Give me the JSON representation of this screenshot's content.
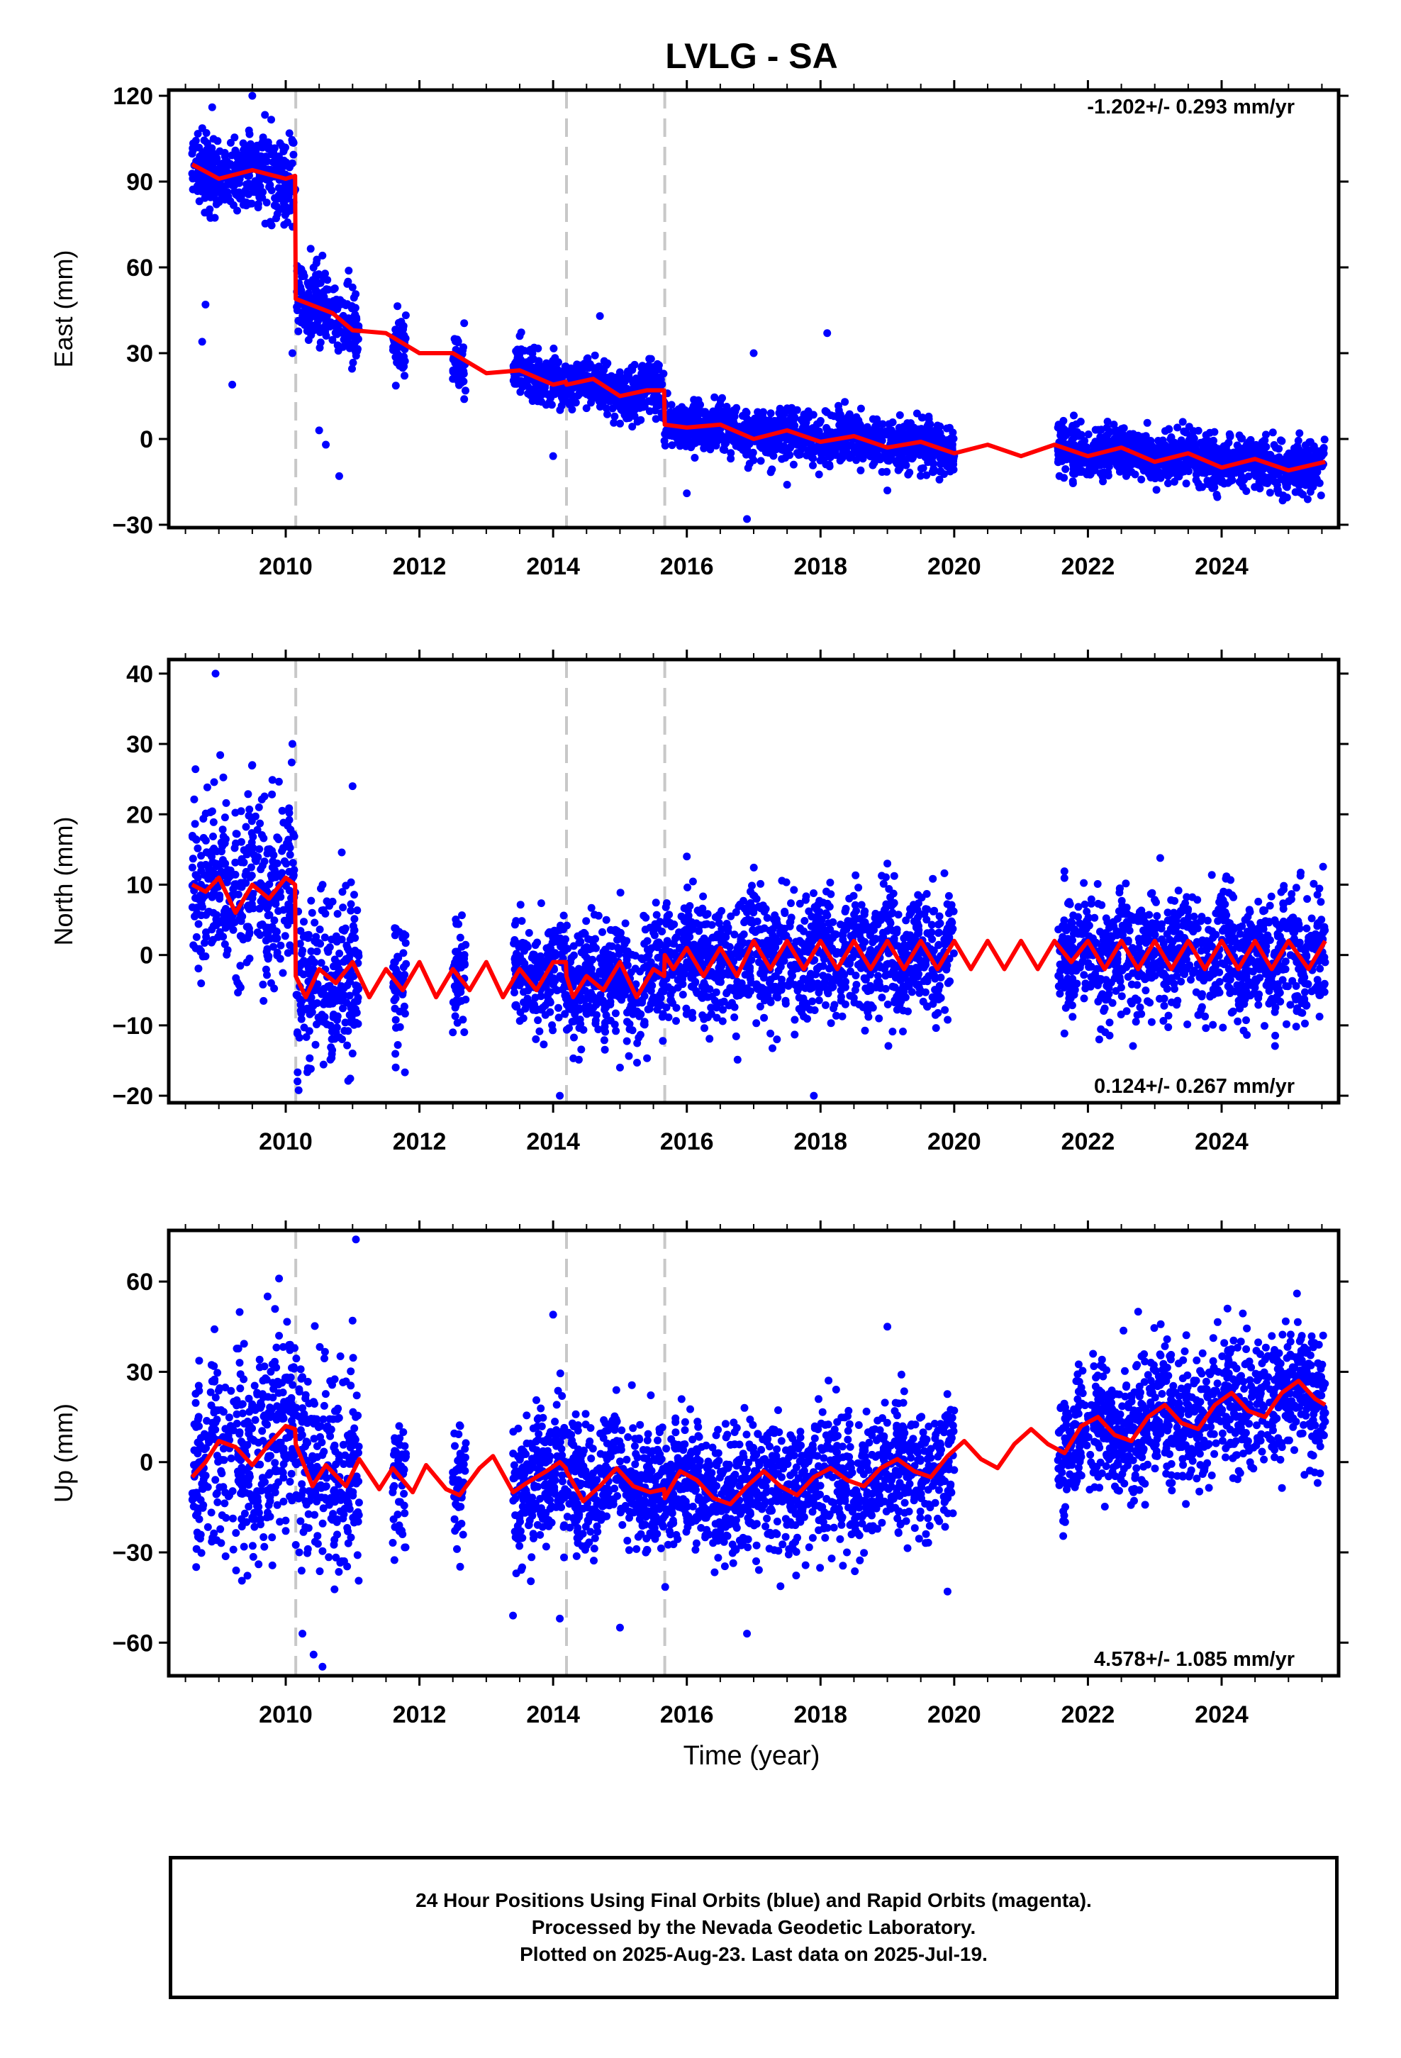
{
  "title": "LVLG - SA",
  "xlabel": "Time (year)",
  "footer": {
    "line1": "24 Hour Positions Using Final Orbits (blue) and Rapid Orbits (magenta).",
    "line2": "Processed by the Nevada Geodetic Laboratory.",
    "line3": "Plotted on 2025-Aug-23. Last data on 2025-Jul-19."
  },
  "colors": {
    "points": "#0000ff",
    "model": "#ff0000",
    "offset_lines": "#c8c8c8"
  },
  "chart_data": [
    {
      "type": "scatter",
      "name": "east",
      "ylabel": "East (mm)",
      "rate_text": "-1.202+/- 0.293 mm/yr",
      "rate_position": "top-right",
      "xlim": [
        2008.25,
        2025.75
      ],
      "ylim": [
        -31,
        122
      ],
      "yticks": [
        -30,
        0,
        30,
        60,
        90,
        120
      ],
      "xticks": [
        2010,
        2012,
        2014,
        2016,
        2018,
        2020,
        2022,
        2024
      ],
      "offset_epochs": [
        2010.15,
        2014.2,
        2015.67
      ],
      "data_spans": [
        [
          2008.6,
          2010.15
        ],
        [
          2010.15,
          2011.1
        ],
        [
          2011.6,
          2011.8
        ],
        [
          2012.5,
          2012.7
        ],
        [
          2013.4,
          2020.0
        ],
        [
          2021.55,
          2025.55
        ]
      ],
      "model": [
        [
          2008.6,
          96
        ],
        [
          2009.0,
          91
        ],
        [
          2009.5,
          94
        ],
        [
          2010.0,
          91
        ],
        [
          2010.14,
          92
        ],
        [
          2010.15,
          49
        ],
        [
          2010.7,
          44
        ],
        [
          2011.0,
          38
        ],
        [
          2011.5,
          37
        ],
        [
          2012.0,
          30
        ],
        [
          2012.5,
          30
        ],
        [
          2013.0,
          23
        ],
        [
          2013.5,
          24
        ],
        [
          2014.0,
          19
        ],
        [
          2014.19,
          20
        ],
        [
          2014.2,
          19
        ],
        [
          2014.6,
          21
        ],
        [
          2015.0,
          15
        ],
        [
          2015.4,
          17
        ],
        [
          2015.66,
          17
        ],
        [
          2015.67,
          5
        ],
        [
          2016.0,
          4
        ],
        [
          2016.5,
          5
        ],
        [
          2017.0,
          0
        ],
        [
          2017.5,
          3
        ],
        [
          2018.0,
          -1
        ],
        [
          2018.5,
          1
        ],
        [
          2019.0,
          -3
        ],
        [
          2019.5,
          -1
        ],
        [
          2020.0,
          -5
        ],
        [
          2020.5,
          -2
        ],
        [
          2021.0,
          -6
        ],
        [
          2021.5,
          -2
        ],
        [
          2022.0,
          -6
        ],
        [
          2022.5,
          -3
        ],
        [
          2023.0,
          -8
        ],
        [
          2023.5,
          -5
        ],
        [
          2024.0,
          -10
        ],
        [
          2024.5,
          -7
        ],
        [
          2025.0,
          -11
        ],
        [
          2025.55,
          -8
        ]
      ],
      "outliers": [
        [
          2008.9,
          116
        ],
        [
          2009.5,
          120
        ],
        [
          2008.8,
          47
        ],
        [
          2008.75,
          34
        ],
        [
          2009.2,
          19
        ],
        [
          2010.1,
          30
        ],
        [
          2010.5,
          3
        ],
        [
          2010.6,
          -2
        ],
        [
          2010.8,
          -13
        ],
        [
          2011.0,
          53
        ],
        [
          2012.5,
          21
        ],
        [
          2013.5,
          36
        ],
        [
          2014.0,
          -6
        ],
        [
          2014.7,
          43
        ],
        [
          2016.7,
          10
        ],
        [
          2016.9,
          -28
        ],
        [
          2017.0,
          30
        ],
        [
          2018.1,
          37
        ],
        [
          2016.0,
          -19
        ],
        [
          2017.5,
          -16
        ],
        [
          2019.0,
          -18
        ]
      ]
    },
    {
      "type": "scatter",
      "name": "north",
      "ylabel": "North (mm)",
      "rate_text": "0.124+/- 0.267 mm/yr",
      "rate_position": "bottom-right",
      "xlim": [
        2008.25,
        2025.75
      ],
      "ylim": [
        -21,
        42
      ],
      "yticks": [
        -20,
        -10,
        0,
        10,
        20,
        30,
        40
      ],
      "xticks": [
        2010,
        2012,
        2014,
        2016,
        2018,
        2020,
        2022,
        2024
      ],
      "offset_epochs": [
        2010.15,
        2014.2,
        2015.67
      ],
      "data_spans": [
        [
          2008.6,
          2010.15
        ],
        [
          2010.15,
          2011.1
        ],
        [
          2011.6,
          2011.8
        ],
        [
          2012.5,
          2012.7
        ],
        [
          2013.4,
          2020.0
        ],
        [
          2021.55,
          2025.55
        ]
      ],
      "model": [
        [
          2008.6,
          10
        ],
        [
          2008.8,
          9
        ],
        [
          2009.0,
          11
        ],
        [
          2009.25,
          6
        ],
        [
          2009.5,
          10
        ],
        [
          2009.75,
          8
        ],
        [
          2010.0,
          11
        ],
        [
          2010.14,
          10
        ],
        [
          2010.15,
          -3
        ],
        [
          2010.3,
          -6
        ],
        [
          2010.5,
          -2
        ],
        [
          2010.75,
          -4
        ],
        [
          2011.0,
          -1
        ],
        [
          2011.25,
          -6
        ],
        [
          2011.5,
          -2
        ],
        [
          2011.75,
          -5
        ],
        [
          2012.0,
          -1
        ],
        [
          2012.25,
          -6
        ],
        [
          2012.5,
          -2
        ],
        [
          2012.75,
          -5
        ],
        [
          2013.0,
          -1
        ],
        [
          2013.25,
          -6
        ],
        [
          2013.5,
          -2
        ],
        [
          2013.75,
          -5
        ],
        [
          2014.0,
          -1
        ],
        [
          2014.19,
          -1
        ],
        [
          2014.2,
          -3
        ],
        [
          2014.3,
          -6
        ],
        [
          2014.5,
          -3
        ],
        [
          2014.75,
          -5
        ],
        [
          2015.0,
          -1
        ],
        [
          2015.25,
          -6
        ],
        [
          2015.5,
          -2
        ],
        [
          2015.66,
          -3
        ],
        [
          2015.67,
          0
        ],
        [
          2015.8,
          -2
        ],
        [
          2016.0,
          1
        ],
        [
          2016.25,
          -3
        ],
        [
          2016.5,
          1
        ],
        [
          2016.75,
          -3
        ],
        [
          2017.0,
          2
        ],
        [
          2017.25,
          -2
        ],
        [
          2017.5,
          2
        ],
        [
          2017.75,
          -2
        ],
        [
          2018.0,
          2
        ],
        [
          2018.25,
          -2
        ],
        [
          2018.5,
          2
        ],
        [
          2018.75,
          -2
        ],
        [
          2019.0,
          2
        ],
        [
          2019.25,
          -2
        ],
        [
          2019.5,
          2
        ],
        [
          2019.75,
          -2
        ],
        [
          2020.0,
          2
        ],
        [
          2020.25,
          -2
        ],
        [
          2020.5,
          2
        ],
        [
          2020.75,
          -2
        ],
        [
          2021.0,
          2
        ],
        [
          2021.25,
          -2
        ],
        [
          2021.5,
          2
        ],
        [
          2021.75,
          -1
        ],
        [
          2022.0,
          2
        ],
        [
          2022.25,
          -2
        ],
        [
          2022.5,
          2
        ],
        [
          2022.75,
          -2
        ],
        [
          2023.0,
          2
        ],
        [
          2023.25,
          -2
        ],
        [
          2023.5,
          2
        ],
        [
          2023.75,
          -2
        ],
        [
          2024.0,
          2
        ],
        [
          2024.25,
          -2
        ],
        [
          2024.5,
          2
        ],
        [
          2024.75,
          -2
        ],
        [
          2025.0,
          2
        ],
        [
          2025.3,
          -2
        ],
        [
          2025.55,
          2
        ]
      ],
      "outliers": [
        [
          2008.95,
          40
        ],
        [
          2009.5,
          27
        ],
        [
          2010.1,
          30
        ],
        [
          2011.0,
          24
        ],
        [
          2009.6,
          21
        ],
        [
          2014.1,
          -20
        ],
        [
          2017.9,
          -20
        ],
        [
          2016.0,
          14
        ],
        [
          2019.0,
          13
        ],
        [
          2011.0,
          -14
        ],
        [
          2012.5,
          -11
        ],
        [
          2015.0,
          -16
        ]
      ]
    },
    {
      "type": "scatter",
      "name": "up",
      "ylabel": "Up (mm)",
      "rate_text": "4.578+/- 1.085 mm/yr",
      "rate_position": "bottom-right",
      "xlim": [
        2008.25,
        2025.75
      ],
      "ylim": [
        -71,
        77
      ],
      "yticks": [
        -60,
        -30,
        0,
        30,
        60
      ],
      "xticks": [
        2010,
        2012,
        2014,
        2016,
        2018,
        2020,
        2022,
        2024
      ],
      "offset_epochs": [
        2010.15,
        2014.2,
        2015.67
      ],
      "data_spans": [
        [
          2008.6,
          2010.15
        ],
        [
          2010.15,
          2011.1
        ],
        [
          2011.6,
          2011.8
        ],
        [
          2012.5,
          2012.7
        ],
        [
          2013.4,
          2020.0
        ],
        [
          2021.55,
          2025.55
        ]
      ],
      "model": [
        [
          2008.6,
          -5
        ],
        [
          2008.8,
          0
        ],
        [
          2009.0,
          7
        ],
        [
          2009.25,
          5
        ],
        [
          2009.5,
          -1
        ],
        [
          2009.75,
          6
        ],
        [
          2010.0,
          12
        ],
        [
          2010.14,
          11
        ],
        [
          2010.15,
          6
        ],
        [
          2010.4,
          -8
        ],
        [
          2010.6,
          -1
        ],
        [
          2010.9,
          -8
        ],
        [
          2011.1,
          1
        ],
        [
          2011.4,
          -9
        ],
        [
          2011.6,
          -2
        ],
        [
          2011.9,
          -10
        ],
        [
          2012.1,
          -1
        ],
        [
          2012.4,
          -9
        ],
        [
          2012.6,
          -11
        ],
        [
          2012.9,
          -2
        ],
        [
          2013.1,
          2
        ],
        [
          2013.4,
          -10
        ],
        [
          2013.6,
          -7
        ],
        [
          2013.9,
          -3
        ],
        [
          2014.1,
          0
        ],
        [
          2014.19,
          -2
        ],
        [
          2014.2,
          -3
        ],
        [
          2014.45,
          -13
        ],
        [
          2014.7,
          -8
        ],
        [
          2014.95,
          -2
        ],
        [
          2015.2,
          -8
        ],
        [
          2015.45,
          -10
        ],
        [
          2015.66,
          -9
        ],
        [
          2015.67,
          -12
        ],
        [
          2015.9,
          -3
        ],
        [
          2016.15,
          -6
        ],
        [
          2016.4,
          -12
        ],
        [
          2016.65,
          -14
        ],
        [
          2016.9,
          -8
        ],
        [
          2017.15,
          -3
        ],
        [
          2017.4,
          -8
        ],
        [
          2017.65,
          -11
        ],
        [
          2017.9,
          -5
        ],
        [
          2018.15,
          -2
        ],
        [
          2018.4,
          -6
        ],
        [
          2018.65,
          -8
        ],
        [
          2018.9,
          -2
        ],
        [
          2019.15,
          1
        ],
        [
          2019.4,
          -3
        ],
        [
          2019.65,
          -5
        ],
        [
          2019.9,
          2
        ],
        [
          2020.15,
          7
        ],
        [
          2020.4,
          1
        ],
        [
          2020.65,
          -2
        ],
        [
          2020.9,
          6
        ],
        [
          2021.15,
          11
        ],
        [
          2021.4,
          6
        ],
        [
          2021.65,
          3
        ],
        [
          2021.9,
          12
        ],
        [
          2022.15,
          15
        ],
        [
          2022.4,
          9
        ],
        [
          2022.65,
          7
        ],
        [
          2022.9,
          15
        ],
        [
          2023.15,
          19
        ],
        [
          2023.4,
          13
        ],
        [
          2023.65,
          11
        ],
        [
          2023.9,
          19
        ],
        [
          2024.15,
          23
        ],
        [
          2024.4,
          17
        ],
        [
          2024.65,
          15
        ],
        [
          2024.9,
          23
        ],
        [
          2025.15,
          27
        ],
        [
          2025.4,
          21
        ],
        [
          2025.55,
          19
        ]
      ],
      "outliers": [
        [
          2011.05,
          74
        ],
        [
          2009.9,
          61
        ],
        [
          2010.55,
          -68
        ],
        [
          2010.25,
          -57
        ],
        [
          2015.0,
          -55
        ],
        [
          2013.4,
          -51
        ],
        [
          2014.1,
          -52
        ],
        [
          2016.9,
          -57
        ],
        [
          2009.9,
          42
        ],
        [
          2011.0,
          47
        ],
        [
          2014.0,
          49
        ],
        [
          2019.9,
          -43
        ],
        [
          2019.0,
          45
        ]
      ]
    }
  ]
}
